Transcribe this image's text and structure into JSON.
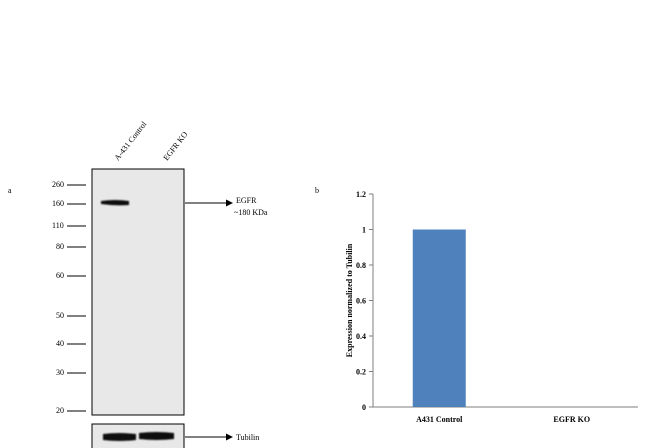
{
  "panel_a": {
    "letter": "a",
    "lanes": [
      "A-431 Control",
      "EGFR KO"
    ],
    "markers": [
      "260",
      "160",
      "110",
      "80",
      "60",
      "50",
      "40",
      "30",
      "20"
    ],
    "egfr_label": "EGFR",
    "egfr_size": "~180 KDa",
    "tubulin_label": "Tubilin"
  },
  "panel_b": {
    "letter": "b"
  },
  "chart_data": {
    "type": "bar",
    "categories": [
      "A431 Control",
      "EGFR KO"
    ],
    "values": [
      1,
      0
    ],
    "xlabel": "",
    "ylabel": "Expression normalized to Tubilin",
    "ylim": [
      0,
      1.2
    ],
    "yticks": [
      "0",
      "0.2",
      "0.4",
      "0.6",
      "0.8",
      "1",
      "1.2"
    ],
    "bar_color": "#4f81bd",
    "grid": false
  }
}
